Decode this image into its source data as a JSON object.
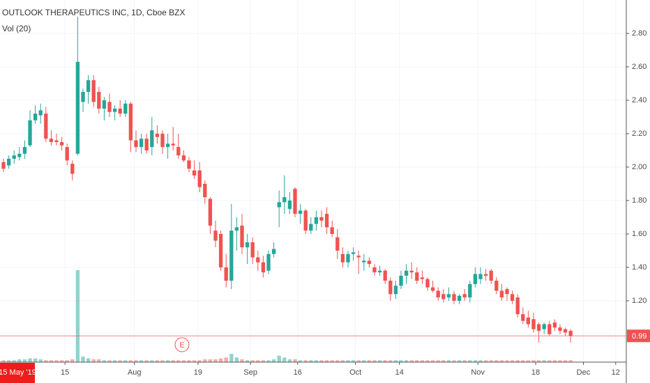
{
  "chart_data": {
    "type": "candlestick",
    "title": "OUTLOOK THERAPEUTICS INC, 1D, Cboe BZX",
    "subtitle": "Vol (20)",
    "crosshair_label": "15 May '19",
    "event_marker": "E",
    "up_color": "#26a69a",
    "down_color": "#ef5350",
    "open": [
      2.03,
      2.01,
      2.05,
      2.06,
      2.08,
      2.13,
      2.28,
      2.31,
      2.32,
      2.17,
      2.16,
      2.15,
      2.12,
      2.02,
      2.08,
      2.39,
      2.45,
      2.52,
      2.45,
      2.35,
      2.39,
      2.33,
      2.35,
      2.32,
      2.38,
      2.16,
      2.12,
      2.17,
      2.12,
      2.2,
      2.2,
      2.12,
      2.14,
      2.12,
      2.07,
      2.04,
      1.98,
      1.98,
      1.9,
      1.81,
      1.62,
      1.6,
      1.4,
      1.32,
      1.62,
      1.65,
      1.52,
      1.55,
      1.46,
      1.43,
      1.38,
      1.48,
      1.76,
      1.79,
      1.75,
      1.87,
      1.72,
      1.74,
      1.62,
      1.66,
      1.7,
      1.72,
      1.64,
      1.58,
      1.48,
      1.43,
      1.48,
      1.47,
      1.43,
      1.44,
      1.4,
      1.37,
      1.38,
      1.32,
      1.24,
      1.29,
      1.35,
      1.38,
      1.37,
      1.34,
      1.33,
      1.28,
      1.26,
      1.24,
      1.22,
      1.24,
      1.2,
      1.24,
      1.22,
      1.3,
      1.33,
      1.36,
      1.38,
      1.32,
      1.26,
      1.27,
      1.24,
      1.22,
      1.12,
      1.1,
      1.09,
      1.06,
      1.03,
      1.06,
      1.07,
      1.04,
      1.03,
      1.02
    ],
    "high": [
      2.05,
      2.07,
      2.1,
      2.12,
      2.16,
      2.34,
      2.37,
      2.38,
      2.36,
      2.22,
      2.2,
      2.18,
      2.14,
      2.04,
      2.9,
      2.47,
      2.55,
      2.55,
      2.48,
      2.42,
      2.44,
      2.37,
      2.4,
      2.4,
      2.39,
      2.22,
      2.2,
      2.2,
      2.3,
      2.25,
      2.22,
      2.2,
      2.24,
      2.2,
      2.1,
      2.06,
      2.04,
      2.03,
      1.92,
      1.82,
      1.68,
      1.62,
      1.48,
      1.78,
      1.7,
      1.72,
      1.6,
      1.58,
      1.5,
      1.47,
      1.5,
      1.55,
      1.86,
      1.95,
      1.85,
      1.88,
      1.78,
      1.75,
      1.7,
      1.74,
      1.74,
      1.76,
      1.68,
      1.63,
      1.52,
      1.5,
      1.52,
      1.5,
      1.48,
      1.46,
      1.42,
      1.41,
      1.39,
      1.34,
      1.32,
      1.38,
      1.42,
      1.43,
      1.4,
      1.38,
      1.34,
      1.32,
      1.28,
      1.27,
      1.28,
      1.26,
      1.24,
      1.27,
      1.32,
      1.4,
      1.4,
      1.39,
      1.39,
      1.34,
      1.3,
      1.28,
      1.26,
      1.24,
      1.16,
      1.14,
      1.13,
      1.07,
      1.07,
      1.08,
      1.09,
      1.06,
      1.04,
      1.03
    ],
    "low": [
      1.97,
      1.99,
      2.02,
      2.04,
      2.05,
      2.12,
      2.26,
      2.26,
      2.15,
      2.13,
      2.13,
      2.1,
      2.01,
      1.92,
      2.07,
      2.33,
      2.38,
      2.36,
      2.32,
      2.28,
      2.3,
      2.28,
      2.3,
      2.3,
      2.09,
      2.09,
      2.08,
      2.08,
      2.07,
      2.14,
      2.08,
      2.05,
      2.1,
      2.05,
      2.03,
      1.97,
      1.93,
      1.85,
      1.78,
      1.6,
      1.52,
      1.38,
      1.28,
      1.27,
      1.5,
      1.48,
      1.42,
      1.42,
      1.38,
      1.34,
      1.36,
      1.46,
      1.64,
      1.72,
      1.72,
      1.7,
      1.66,
      1.6,
      1.6,
      1.62,
      1.64,
      1.6,
      1.58,
      1.45,
      1.4,
      1.4,
      1.44,
      1.36,
      1.38,
      1.4,
      1.35,
      1.35,
      1.3,
      1.2,
      1.21,
      1.27,
      1.3,
      1.33,
      1.3,
      1.3,
      1.26,
      1.25,
      1.2,
      1.19,
      1.2,
      1.18,
      1.18,
      1.2,
      1.19,
      1.28,
      1.3,
      1.32,
      1.3,
      1.24,
      1.2,
      1.2,
      1.18,
      1.1,
      1.06,
      1.04,
      1.01,
      0.95,
      1.0,
      0.99,
      1.02,
      1.0,
      0.99,
      0.95
    ],
    "close": [
      1.99,
      2.05,
      2.07,
      2.08,
      2.12,
      2.28,
      2.32,
      2.34,
      2.17,
      2.15,
      2.15,
      2.13,
      2.04,
      1.96,
      2.63,
      2.45,
      2.52,
      2.39,
      2.35,
      2.4,
      2.33,
      2.35,
      2.32,
      2.38,
      2.16,
      2.12,
      2.17,
      2.1,
      2.22,
      2.18,
      2.12,
      2.14,
      2.13,
      2.07,
      2.04,
      1.99,
      1.95,
      1.88,
      1.82,
      1.65,
      1.56,
      1.4,
      1.32,
      1.62,
      1.64,
      1.52,
      1.55,
      1.46,
      1.43,
      1.37,
      1.48,
      1.51,
      1.79,
      1.82,
      1.8,
      1.72,
      1.74,
      1.62,
      1.66,
      1.7,
      1.68,
      1.64,
      1.6,
      1.5,
      1.43,
      1.48,
      1.49,
      1.46,
      1.44,
      1.42,
      1.37,
      1.38,
      1.32,
      1.24,
      1.29,
      1.35,
      1.38,
      1.37,
      1.32,
      1.33,
      1.28,
      1.26,
      1.22,
      1.21,
      1.24,
      1.2,
      1.23,
      1.22,
      1.3,
      1.36,
      1.36,
      1.35,
      1.32,
      1.26,
      1.22,
      1.24,
      1.2,
      1.12,
      1.08,
      1.06,
      1.03,
      1.02,
      1.06,
      1.0,
      1.04,
      1.02,
      1.01,
      0.99
    ],
    "volume": [
      2,
      2,
      2,
      3,
      3,
      4,
      4,
      3,
      2,
      2,
      2,
      2,
      2,
      3,
      100,
      6,
      4,
      3,
      3,
      2,
      2,
      2,
      2,
      2,
      2,
      2,
      2,
      2,
      2,
      2,
      2,
      2,
      2,
      2,
      2,
      2,
      2,
      2,
      3,
      3,
      3,
      4,
      5,
      9,
      5,
      3,
      2,
      2,
      2,
      2,
      2,
      3,
      7,
      5,
      3,
      3,
      2,
      2,
      2,
      2,
      2,
      2,
      2,
      2,
      2,
      2,
      2,
      2,
      2,
      2,
      2,
      2,
      2,
      2,
      2,
      2,
      2,
      2,
      2,
      2,
      2,
      2,
      2,
      2,
      2,
      2,
      2,
      2,
      2,
      2,
      2,
      2,
      2,
      2,
      2,
      2,
      2,
      2,
      2,
      2,
      2,
      2,
      2,
      2,
      2,
      2,
      2,
      2
    ],
    "last_price": 0.99,
    "xlim": [
      -0.66,
      117.5
    ],
    "xticks": [
      {
        "value": 11.6,
        "label": "15"
      },
      {
        "value": 24.7,
        "label": "Aug"
      },
      {
        "value": 36.7,
        "label": "19"
      },
      {
        "value": 46.6,
        "label": "Sep"
      },
      {
        "value": 55.5,
        "label": "16"
      },
      {
        "value": 66.4,
        "label": "Oct"
      },
      {
        "value": 74.7,
        "label": "14"
      },
      {
        "value": 89.5,
        "label": "Nov"
      },
      {
        "value": 100.4,
        "label": "18"
      },
      {
        "value": 109.4,
        "label": "Dec"
      },
      {
        "value": 115.5,
        "label": "12"
      }
    ],
    "ylim": [
      0.833,
      3.0
    ],
    "yticks": [
      {
        "value": 1.2,
        "label": "1.20"
      },
      {
        "value": 1.4,
        "label": "1.40"
      },
      {
        "value": 1.6,
        "label": "1.60"
      },
      {
        "value": 1.8,
        "label": "1.80"
      },
      {
        "value": 2.0,
        "label": "2.00"
      },
      {
        "value": 2.2,
        "label": "2.20"
      },
      {
        "value": 2.4,
        "label": "2.40"
      },
      {
        "value": 2.6,
        "label": "2.60"
      },
      {
        "value": 2.8,
        "label": "2.80"
      }
    ],
    "grid": true
  }
}
